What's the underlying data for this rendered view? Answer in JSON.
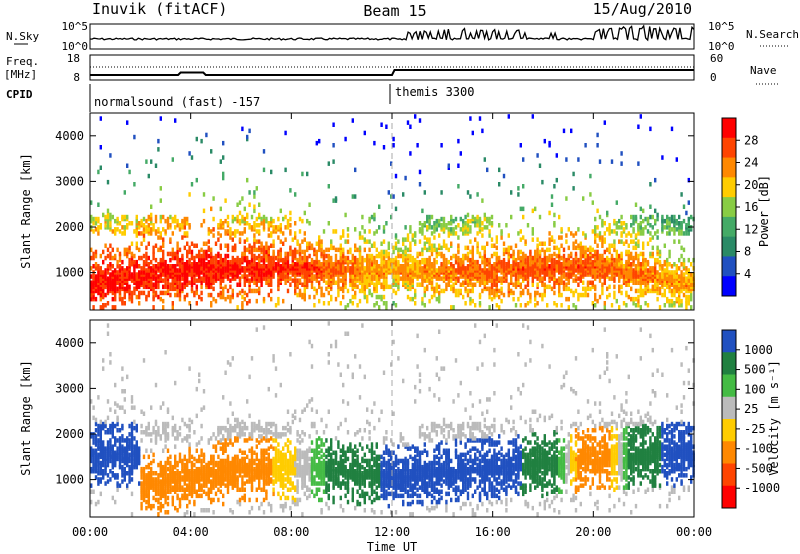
{
  "header": {
    "station": "Inuvik (fitACF)",
    "beam": "Beam 15",
    "date": "15/Aug/2010"
  },
  "params": {
    "nsky_label": "N.Sky",
    "nsearch_label": "N.Search",
    "freq_label_1": "Freq.",
    "freq_label_2": "[MHz]",
    "nave_label": "Nave",
    "cpid_label": "CPID",
    "nsky_ticks": [
      "10^5",
      "10^0"
    ],
    "nsearch_ticks": [
      "10^5",
      "10^0"
    ],
    "freq_ticks": [
      "18",
      "8"
    ],
    "nave_ticks": [
      "60",
      "0"
    ],
    "cpid_segments": [
      {
        "start_hour": 0,
        "label": "normalsound (fast) -157"
      },
      {
        "start_hour": 12,
        "label": "themis 3300"
      }
    ]
  },
  "power_panel": {
    "ylabel": "Slant Range [km]",
    "cbar_label": "Power [dB]",
    "cbar_ticks": [
      "28",
      "24",
      "20",
      "16",
      "12",
      "8",
      "4"
    ],
    "cbar_colors": [
      "#ff0000",
      "#ff4400",
      "#ff8800",
      "#ffcc00",
      "#88cc44",
      "#44aa66",
      "#2a8a66",
      "#2050c0",
      "#0000ff"
    ]
  },
  "velocity_panel": {
    "ylabel": "Slant Range [km]",
    "cbar_label": "Velocity [m s⁻¹]",
    "cbar_ticks": [
      "1000",
      "500",
      "100",
      "25",
      "-25",
      "-100",
      "-500",
      "-1000"
    ],
    "cbar_colors": [
      "#2050c0",
      "#208040",
      "#44bb44",
      "#bbbbbb",
      "#ffcc00",
      "#ff8800",
      "#ff4400",
      "#ff0000"
    ]
  },
  "xaxis": {
    "label": "Time UT",
    "ticks": [
      "00:00",
      "04:00",
      "08:00",
      "12:00",
      "16:00",
      "20:00",
      "00:00"
    ]
  },
  "yaxis_ticks": [
    "4000",
    "3000",
    "2000",
    "1000"
  ],
  "chart_data": {
    "type": "heatmap",
    "x_range_hours": [
      0,
      24
    ],
    "y_range_km": [
      180,
      4500
    ],
    "y_ticks_km": [
      1000,
      2000,
      3000,
      4000
    ],
    "x_ticks_hours": [
      0,
      4,
      8,
      12,
      16,
      20,
      24
    ],
    "frequency_mhz": [
      {
        "x": 0,
        "y": 10
      },
      {
        "x": 3.5,
        "y": 10
      },
      {
        "x": 3.6,
        "y": 11
      },
      {
        "x": 4.5,
        "y": 11
      },
      {
        "x": 4.6,
        "y": 10
      },
      {
        "x": 12,
        "y": 10
      },
      {
        "x": 12.1,
        "y": 12
      },
      {
        "x": 24,
        "y": 12
      }
    ],
    "power_db_approx": {
      "main_band": [
        {
          "hour": 0,
          "range_km": 700,
          "db": 28
        },
        {
          "hour": 4,
          "range_km": 1050,
          "db": 28
        },
        {
          "hour": 8,
          "range_km": 1050,
          "db": 26
        },
        {
          "hour": 12,
          "range_km": 1000,
          "db": 20
        },
        {
          "hour": 16,
          "range_km": 1000,
          "db": 24
        },
        {
          "hour": 20,
          "range_km": 1100,
          "db": 24
        },
        {
          "hour": 24,
          "range_km": 700,
          "db": 20
        }
      ]
    },
    "velocity_approx": {
      "main_band": [
        {
          "hour": 2,
          "range_km": 800,
          "v": -300
        },
        {
          "hour": 6,
          "range_km": 1200,
          "v": -200
        },
        {
          "hour": 9,
          "range_km": 1200,
          "v": 50
        },
        {
          "hour": 12,
          "range_km": 1000,
          "v": 600
        },
        {
          "hour": 16,
          "range_km": 1200,
          "v": 800
        },
        {
          "hour": 20,
          "range_km": 1400,
          "v": -300
        },
        {
          "hour": 23,
          "range_km": 1500,
          "v": 600
        }
      ]
    }
  }
}
